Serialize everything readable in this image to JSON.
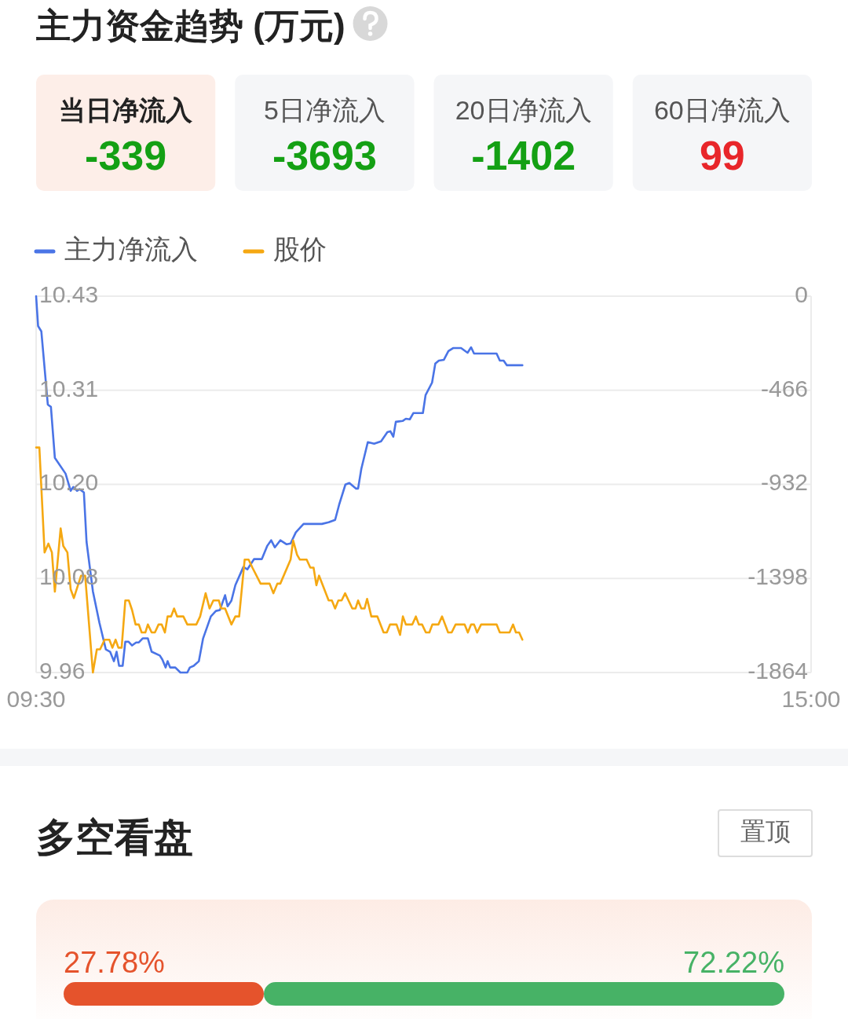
{
  "chart_data": [
    {
      "type": "other",
      "title": "主力资金趋势 (万元)",
      "categories": [
        "当日净流入",
        "5日净流入",
        "20日净流入",
        "60日净流入"
      ],
      "value_labels": [
        "-339",
        "-3693",
        "-1402",
        "99"
      ]
    },
    {
      "type": "line",
      "legend": "top left",
      "grid": "y",
      "xlim": [
        9.5,
        15
      ],
      "xticks": [
        {
          "value": 9.5,
          "label": "09:30"
        },
        {
          "value": 15,
          "label": "15:00"
        }
      ],
      "ylim": [
        9.96,
        10.43
      ],
      "yticks": [
        {
          "value": 9.96,
          "label": "9.96"
        },
        {
          "value": 10.0775,
          "label": "10.08"
        },
        {
          "value": 10.195,
          "label": "10.20"
        },
        {
          "value": 10.3125,
          "label": "10.31"
        },
        {
          "value": 10.43,
          "label": "10.43"
        }
      ],
      "y2lim": [
        -1864,
        0
      ],
      "y2ticks": [
        -1864,
        -1398,
        -932,
        -466,
        0
      ],
      "series": [
        {
          "name": "主力净流入",
          "color": "#4a74e6",
          "axis": "y2",
          "x": [
            9.5,
            9.514,
            9.537,
            9.583,
            9.605,
            9.633,
            9.709,
            9.745,
            9.764,
            9.791,
            9.809,
            9.839,
            9.858,
            9.903,
            9.949,
            9.995,
            10.025,
            10.052,
            10.071,
            10.089,
            10.114,
            10.133,
            10.155,
            10.181,
            10.21,
            10.229,
            10.256,
            10.293,
            10.32,
            10.378,
            10.396,
            10.419,
            10.433,
            10.451,
            10.488,
            10.524,
            10.573,
            10.591,
            10.618,
            10.655,
            10.685,
            10.74,
            10.776,
            10.804,
            10.841,
            10.859,
            10.886,
            10.914,
            10.971,
            10.999,
            11.047,
            11.102,
            11.141,
            11.168,
            11.194,
            11.233,
            11.278,
            11.306,
            11.343,
            11.398,
            11.528,
            11.576,
            11.622,
            11.65,
            11.695,
            11.723,
            11.771,
            11.785,
            11.808,
            11.854,
            11.899,
            11.948,
            11.993,
            12.014,
            12.035,
            12.053,
            12.101,
            12.124,
            12.152,
            12.177,
            12.245,
            12.264,
            12.31,
            12.333,
            12.358,
            12.394,
            12.426,
            12.459,
            12.516,
            12.562,
            12.587,
            12.608,
            12.768,
            12.791,
            12.818,
            12.841,
            12.951
          ],
          "values": [
            0,
            -148,
            -174,
            -537,
            -548,
            -801,
            -879,
            -964,
            -945,
            -964,
            -956,
            -972,
            -1217,
            -1462,
            -1617,
            -1750,
            -1761,
            -1808,
            -1761,
            -1831,
            -1831,
            -1711,
            -1711,
            -1730,
            -1715,
            -1715,
            -1695,
            -1695,
            -1761,
            -1780,
            -1800,
            -1839,
            -1808,
            -1839,
            -1839,
            -1864,
            -1864,
            -1839,
            -1831,
            -1808,
            -1695,
            -1586,
            -1559,
            -1555,
            -1481,
            -1536,
            -1508,
            -1431,
            -1341,
            -1353,
            -1302,
            -1302,
            -1236,
            -1209,
            -1244,
            -1209,
            -1229,
            -1225,
            -1170,
            -1128,
            -1128,
            -1120,
            -1108,
            -1034,
            -933,
            -925,
            -953,
            -953,
            -855,
            -723,
            -731,
            -719,
            -673,
            -669,
            -696,
            -622,
            -618,
            -607,
            -610,
            -579,
            -579,
            -490,
            -428,
            -334,
            -319,
            -315,
            -272,
            -257,
            -257,
            -280,
            -253,
            -284,
            -284,
            -319,
            -319,
            -342,
            -342
          ]
        },
        {
          "name": "股价",
          "color": "#f5a812",
          "x": [
            9.5,
            9.523,
            9.56,
            9.587,
            9.612,
            9.633,
            9.674,
            9.693,
            9.722,
            9.745,
            9.768,
            9.819,
            9.848,
            9.903,
            9.931,
            9.954,
            9.986,
            10.02,
            10.041,
            10.064,
            10.084,
            10.107,
            10.133,
            10.158,
            10.181,
            10.206,
            10.229,
            10.249,
            10.275,
            10.293,
            10.32,
            10.343,
            10.369,
            10.391,
            10.414,
            10.433,
            10.458,
            10.479,
            10.501,
            10.545,
            10.573,
            10.637,
            10.664,
            10.703,
            10.731,
            10.758,
            10.797,
            10.813,
            10.841,
            10.886,
            10.914,
            10.941,
            10.98,
            11.008,
            11.035,
            11.093,
            11.157,
            11.184,
            11.212,
            11.233,
            11.306,
            11.324,
            11.352,
            11.372,
            11.42,
            11.446,
            11.469,
            11.489,
            11.508,
            11.576,
            11.599,
            11.622,
            11.645,
            11.668,
            11.693,
            11.744,
            11.767,
            11.785,
            11.808,
            11.831,
            11.849,
            11.879,
            11.922,
            11.966,
            11.989,
            12.012,
            12.058,
            12.083,
            12.103,
            12.124,
            12.17,
            12.195,
            12.216,
            12.239,
            12.266,
            12.291,
            12.312,
            12.355,
            12.381,
            12.424,
            12.449,
            12.477,
            12.541,
            12.564,
            12.587,
            12.608,
            12.63,
            12.658,
            12.768,
            12.791,
            12.86,
            12.885,
            12.905,
            12.928,
            12.951
          ],
          "values": [
            10.241,
            10.241,
            10.11,
            10.121,
            10.11,
            10.061,
            10.14,
            10.118,
            10.11,
            10.064,
            10.053,
            10.081,
            10.081,
            9.96,
            9.989,
            9.989,
            10.001,
            10.001,
            9.991,
            10.001,
            9.991,
            9.991,
            10.05,
            10.05,
            10.038,
            10.02,
            10.02,
            10.01,
            10.01,
            10.02,
            10.01,
            10.01,
            10.02,
            10.02,
            10.01,
            10.03,
            10.03,
            10.04,
            10.03,
            10.03,
            10.02,
            10.02,
            10.03,
            10.059,
            10.04,
            10.05,
            10.05,
            10.04,
            10.04,
            10.02,
            10.03,
            10.03,
            10.101,
            10.101,
            10.091,
            10.071,
            10.071,
            10.059,
            10.071,
            10.071,
            10.101,
            10.125,
            10.107,
            10.101,
            10.101,
            10.091,
            10.091,
            10.069,
            10.081,
            10.05,
            10.05,
            10.04,
            10.05,
            10.05,
            10.059,
            10.04,
            10.04,
            10.05,
            10.04,
            10.04,
            10.052,
            10.03,
            10.03,
            10.01,
            10.01,
            10.02,
            10.02,
            10.007,
            10.03,
            10.02,
            10.02,
            10.03,
            10.02,
            10.02,
            10.01,
            10.01,
            10.02,
            10.02,
            10.03,
            10.01,
            10.01,
            10.02,
            10.02,
            10.01,
            10.02,
            10.02,
            10.01,
            10.02,
            10.02,
            10.01,
            10.01,
            10.02,
            10.01,
            10.01,
            10.001
          ]
        }
      ]
    },
    {
      "type": "bar",
      "title": "多空看盘",
      "annotations": [
        "置顶"
      ],
      "orientation": "horizontal",
      "stacked": true,
      "xlim": [
        0,
        100
      ],
      "categories": [
        null
      ],
      "series": [
        {
          "color": "#e5532c",
          "values": [
            27.78
          ],
          "value_labels": [
            "27.78%"
          ]
        },
        {
          "color": "#47b266",
          "values": [
            72.22
          ],
          "value_labels": [
            "72.22%"
          ]
        }
      ]
    }
  ]
}
